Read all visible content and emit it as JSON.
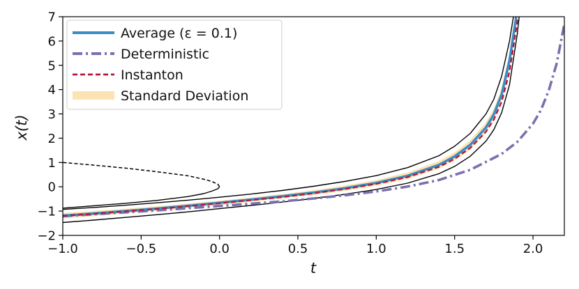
{
  "chart_data": {
    "type": "line",
    "xlabel": "t",
    "ylabel": "x(t)",
    "xlim": [
      -1.0,
      2.2
    ],
    "ylim": [
      -2,
      7
    ],
    "xticks": [
      -1.0,
      -0.5,
      0.0,
      0.5,
      1.0,
      1.5,
      2.0
    ],
    "xtick_labels": [
      "−1.0",
      "−0.5",
      "0.0",
      "0.5",
      "1.0",
      "1.5",
      "2.0"
    ],
    "yticks": [
      -2,
      -1,
      0,
      1,
      2,
      3,
      4,
      5,
      6,
      7
    ],
    "ytick_labels": [
      "−2",
      "−1",
      "0",
      "1",
      "2",
      "3",
      "4",
      "5",
      "6",
      "7"
    ],
    "legend_location": "top-left",
    "series": [
      {
        "name": "Standard Deviation",
        "legend": "Standard Deviation",
        "style": "band",
        "color": "#fde3b1",
        "x": [
          -1.0,
          -0.8,
          -0.6,
          -0.4,
          -0.2,
          0.0,
          0.2,
          0.4,
          0.6,
          0.8,
          1.0,
          1.2,
          1.4,
          1.5,
          1.6,
          1.7,
          1.75,
          1.8,
          1.85,
          1.9
        ],
        "lower": [
          -1.3,
          -1.21,
          -1.1,
          -0.99,
          -0.87,
          -0.75,
          -0.62,
          -0.49,
          -0.34,
          -0.17,
          0.04,
          0.32,
          0.75,
          1.08,
          1.54,
          2.22,
          2.74,
          3.53,
          4.9,
          7.0
        ],
        "upper": [
          -1.08,
          -0.99,
          -0.9,
          -0.8,
          -0.69,
          -0.57,
          -0.44,
          -0.3,
          -0.14,
          0.05,
          0.28,
          0.59,
          1.06,
          1.42,
          1.92,
          2.66,
          3.22,
          4.06,
          5.5,
          7.6
        ]
      },
      {
        "name": "Average",
        "legend": "Average (ε = 0.1)",
        "style": "solid",
        "color": "#3b8dc4",
        "x": [
          -1.0,
          -0.8,
          -0.6,
          -0.4,
          -0.2,
          0.0,
          0.2,
          0.4,
          0.6,
          0.8,
          1.0,
          1.2,
          1.4,
          1.5,
          1.6,
          1.7,
          1.75,
          1.8,
          1.85,
          1.9
        ],
        "y": [
          -1.19,
          -1.1,
          -1.0,
          -0.9,
          -0.78,
          -0.66,
          -0.53,
          -0.39,
          -0.24,
          -0.06,
          0.16,
          0.45,
          0.9,
          1.25,
          1.73,
          2.44,
          2.98,
          3.8,
          5.2,
          7.3
        ]
      },
      {
        "name": "Deterministic",
        "legend": "Deterministic",
        "style": "dashdot",
        "color": "#7a6fb0",
        "x": [
          -1.0,
          -0.8,
          -0.6,
          -0.4,
          -0.2,
          0.0,
          0.2,
          0.4,
          0.6,
          0.8,
          1.0,
          1.2,
          1.4,
          1.6,
          1.8,
          1.9,
          2.0,
          2.05,
          2.1,
          2.15,
          2.2
        ],
        "y": [
          -1.21,
          -1.13,
          -1.05,
          -0.97,
          -0.88,
          -0.79,
          -0.7,
          -0.6,
          -0.48,
          -0.35,
          -0.19,
          0.01,
          0.28,
          0.7,
          1.35,
          1.85,
          2.6,
          3.15,
          3.95,
          5.05,
          6.7
        ]
      },
      {
        "name": "Instanton",
        "legend": "Instanton",
        "style": "dashed",
        "color": "#b5173a",
        "x": [
          -1.0,
          -0.8,
          -0.6,
          -0.4,
          -0.2,
          0.0,
          0.2,
          0.4,
          0.6,
          0.8,
          1.0,
          1.2,
          1.4,
          1.5,
          1.6,
          1.7,
          1.75,
          1.8,
          1.85,
          1.9,
          1.92
        ],
        "y": [
          -1.2,
          -1.11,
          -1.01,
          -0.91,
          -0.8,
          -0.68,
          -0.55,
          -0.42,
          -0.27,
          -0.09,
          0.12,
          0.4,
          0.82,
          1.15,
          1.6,
          2.27,
          2.77,
          3.5,
          4.75,
          6.8,
          7.5
        ]
      },
      {
        "name": "Upper envelope",
        "style": "thin-solid",
        "color": "#000000",
        "x": [
          -1.0,
          -0.8,
          -0.6,
          -0.4,
          -0.2,
          0.0,
          0.2,
          0.4,
          0.6,
          0.8,
          1.0,
          1.2,
          1.4,
          1.5,
          1.6,
          1.7,
          1.75,
          1.8,
          1.85,
          1.88,
          1.9
        ],
        "y": [
          -0.93,
          -0.85,
          -0.76,
          -0.66,
          -0.55,
          -0.43,
          -0.3,
          -0.15,
          0.02,
          0.22,
          0.46,
          0.79,
          1.28,
          1.67,
          2.2,
          3.0,
          3.6,
          4.55,
          6.0,
          7.2,
          8.0
        ]
      },
      {
        "name": "Lower envelope",
        "style": "thin-solid",
        "color": "#000000",
        "x": [
          -1.0,
          -0.8,
          -0.6,
          -0.4,
          -0.2,
          0.0,
          0.2,
          0.4,
          0.6,
          0.8,
          1.0,
          1.2,
          1.4,
          1.5,
          1.6,
          1.7,
          1.75,
          1.8,
          1.85,
          1.9,
          1.92
        ],
        "y": [
          -1.47,
          -1.37,
          -1.26,
          -1.15,
          -1.03,
          -0.9,
          -0.77,
          -0.63,
          -0.48,
          -0.31,
          -0.11,
          0.15,
          0.54,
          0.84,
          1.26,
          1.88,
          2.35,
          3.05,
          4.2,
          6.3,
          7.5
        ]
      },
      {
        "name": "Solid branch",
        "style": "thin-solid",
        "color": "#000000",
        "x": [
          -1.0,
          -0.8,
          -0.6,
          -0.4,
          -0.2,
          -0.1,
          -0.05,
          -0.01,
          0.0
        ],
        "y": [
          -0.88,
          -0.78,
          -0.68,
          -0.56,
          -0.4,
          -0.28,
          -0.18,
          -0.08,
          0.0
        ]
      },
      {
        "name": "Dashed branch",
        "style": "thin-dashed",
        "color": "#000000",
        "x": [
          0.0,
          -0.01,
          -0.05,
          -0.1,
          -0.2,
          -0.4,
          -0.6,
          -0.8,
          -1.0
        ],
        "y": [
          0.0,
          0.1,
          0.22,
          0.31,
          0.45,
          0.62,
          0.77,
          0.89,
          1.0
        ]
      }
    ]
  }
}
